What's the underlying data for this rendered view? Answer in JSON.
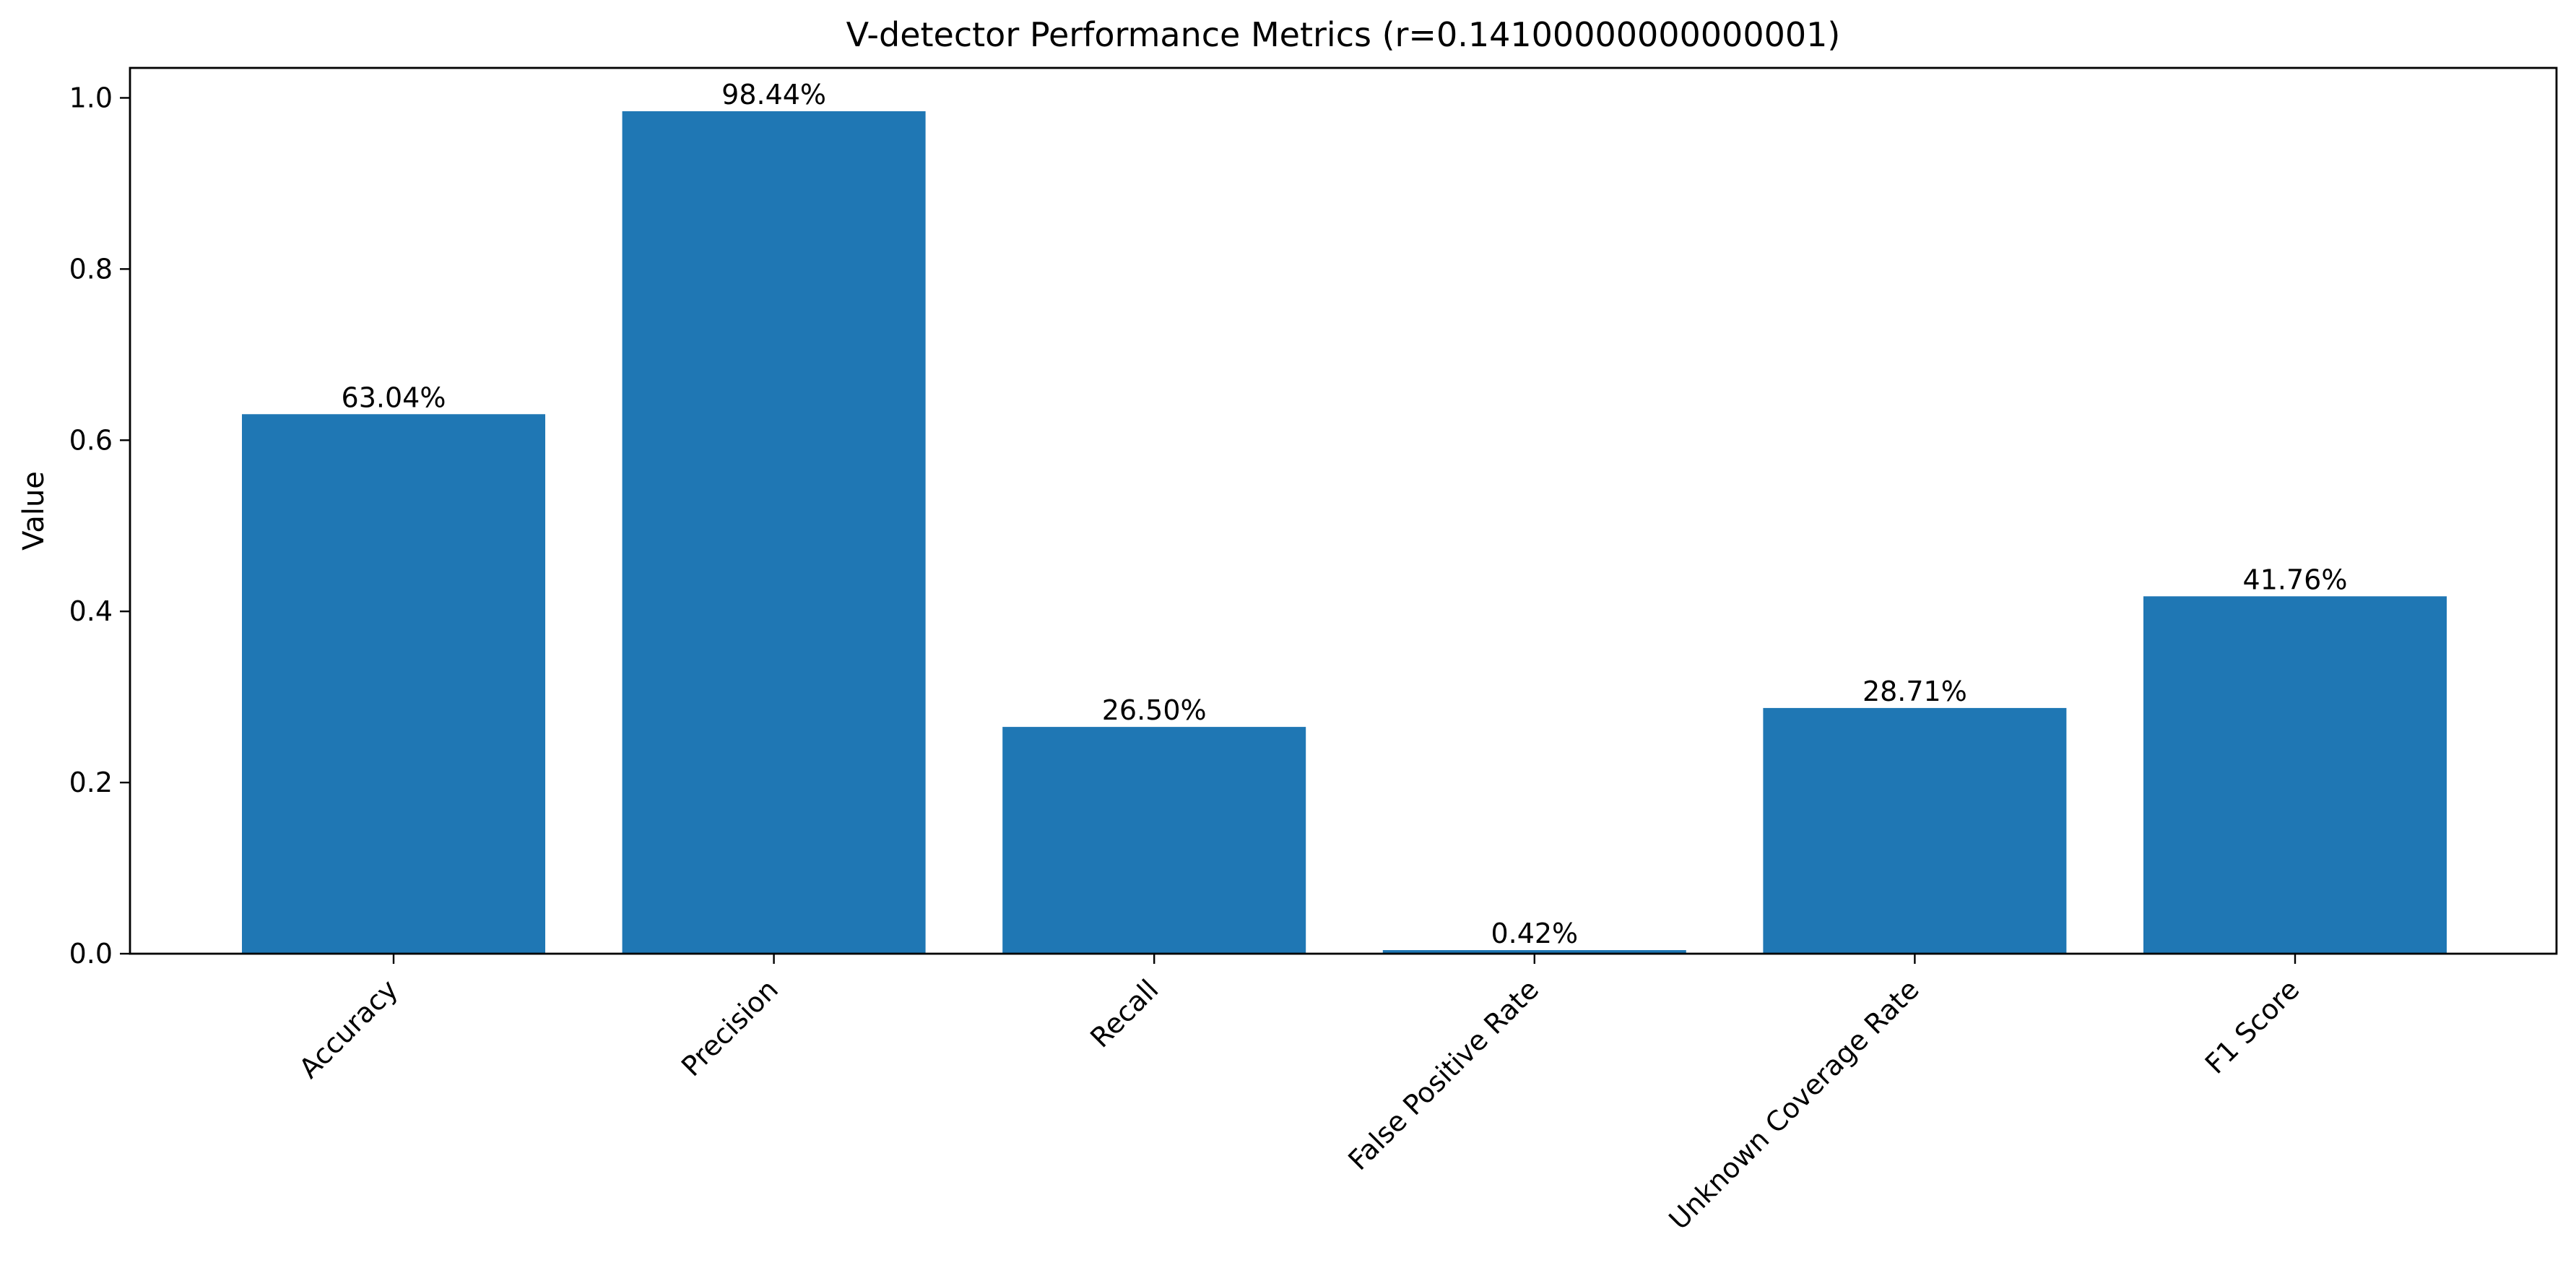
{
  "chart_data": {
    "type": "bar",
    "title": "V-detector Performance Metrics (r=0.14100000000000001)",
    "xlabel": "",
    "ylabel": "Value",
    "categories": [
      "Accuracy",
      "Precision",
      "Recall",
      "False Positive Rate",
      "Unknown Coverage Rate",
      "F1 Score"
    ],
    "values": [
      0.6304,
      0.9844,
      0.265,
      0.0042,
      0.2871,
      0.4176
    ],
    "data_labels": [
      "63.04%",
      "98.44%",
      "26.50%",
      "0.42%",
      "28.71%",
      "41.76%"
    ],
    "ylim": [
      0,
      1.035
    ],
    "yticks": [
      0.0,
      0.2,
      0.4,
      0.6,
      0.8,
      1.0
    ],
    "ytick_labels": [
      "0.0",
      "0.2",
      "0.4",
      "0.6",
      "0.8",
      "1.0"
    ],
    "grid": false,
    "bar_color": "#1f77b4"
  }
}
